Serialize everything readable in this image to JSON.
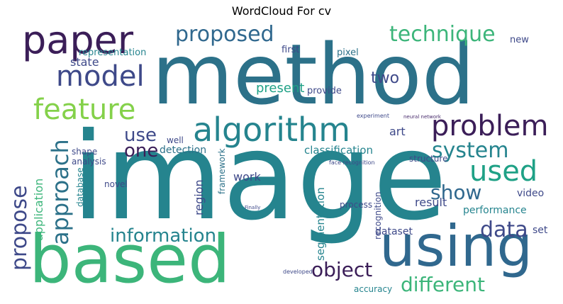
{
  "title": "WordCloud For cv",
  "words": {
    "method": "method",
    "image": "image",
    "based": "based",
    "using": "using",
    "paper": "paper",
    "algorithm": "algorithm",
    "model": "model",
    "feature": "feature",
    "proposed": "proposed",
    "technique": "technique",
    "problem": "problem",
    "used": "used",
    "approach": "approach",
    "propose": "propose",
    "system": "system",
    "show": "show",
    "data": "data",
    "object": "object",
    "different": "different",
    "information": "information",
    "use": "use",
    "one": "one",
    "two": "two",
    "present": "present",
    "state": "state",
    "art": "art",
    "representation": "representation",
    "detection": "detection",
    "classification": "classification",
    "segmentation": "segmentation",
    "application": "application",
    "region": "region",
    "work": "work",
    "framework": "framework",
    "result": "result",
    "performance": "performance",
    "dataset": "dataset",
    "set": "set",
    "video": "video",
    "recognition": "recognition",
    "accuracy": "accuracy",
    "first": "first",
    "new": "new",
    "pixel": "pixel",
    "provide": "provide",
    "shape": "shape",
    "well": "well",
    "analysis": "analysis",
    "novel": "novel",
    "database": "database",
    "structure": "structure",
    "process": "process",
    "face recognition": "face recognition",
    "neural network": "neural network",
    "experiment": "experiment",
    "developed": "developed",
    "Finally": "Finally"
  }
}
